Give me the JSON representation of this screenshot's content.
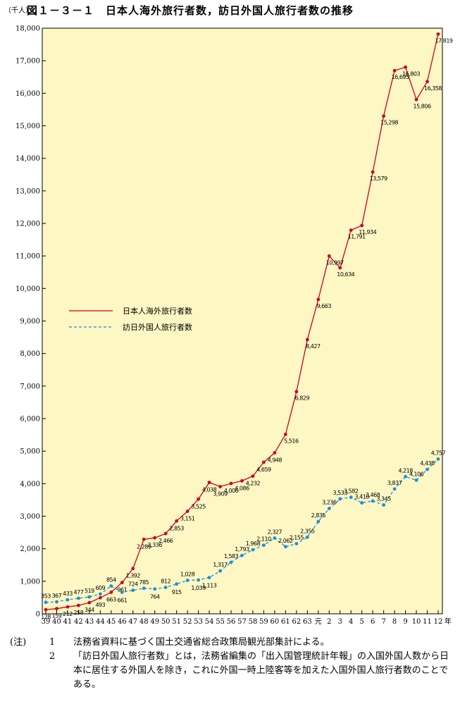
{
  "title": "図１－３－１　日本人海外旅行者数，訪日外国人旅行者数の推移",
  "notes": {
    "mark": "(注)",
    "items": [
      {
        "num": "1",
        "text": "法務省資料に基づく国土交通省総合政策局観光部集計による。"
      },
      {
        "num": "2",
        "text": "「訪日外国人旅行者数」とは，法務省編集の「出入国管理統計年報」の入国外国人数から日本に居住する外国人を除き，これに外国一時上陸客等を加えた入国外国人旅行者数のことである。"
      }
    ]
  },
  "colors": {
    "background": "#fdf7c3",
    "series_outbound": "#cc0022",
    "series_inbound": "#1a8fdd"
  },
  "chart_data": {
    "type": "line",
    "ylabel": "（千人）",
    "x_unit": "年",
    "ylim": [
      0,
      18000
    ],
    "yticks": [
      0,
      1000,
      2000,
      3000,
      4000,
      5000,
      6000,
      7000,
      8000,
      9000,
      10000,
      11000,
      12000,
      13000,
      14000,
      15000,
      16000,
      17000,
      18000
    ],
    "ytick_labels": [
      "0",
      "1,000",
      "2,000",
      "3,000",
      "4,000",
      "5,000",
      "6,000",
      "7,000",
      "8,000",
      "9,000",
      "10,000",
      "11,000",
      "12,000",
      "13,000",
      "14,000",
      "15,000",
      "16,000",
      "17,000",
      "18,000"
    ],
    "x": [
      "39",
      "40",
      "41",
      "42",
      "43",
      "44",
      "45",
      "46",
      "47",
      "48",
      "49",
      "50",
      "51",
      "52",
      "53",
      "54",
      "55",
      "56",
      "57",
      "58",
      "59",
      "60",
      "61",
      "62",
      "63",
      "元",
      "2",
      "3",
      "4",
      "5",
      "6",
      "7",
      "8",
      "9",
      "10",
      "11",
      "12"
    ],
    "grid": false,
    "legend_position": "middle-left",
    "series": [
      {
        "name": "日本人海外旅行者数",
        "style": "solid",
        "values": [
          128,
          159,
          212,
          258,
          344,
          493,
          663,
          961,
          1392,
          2289,
          2336,
          2466,
          2853,
          3151,
          3525,
          4038,
          3909,
          4006,
          4086,
          4232,
          4659,
          4948,
          5516,
          6829,
          8427,
          9663,
          10997,
          10634,
          11791,
          11934,
          13579,
          15298,
          16695,
          16803,
          15806,
          16358,
          17819
        ],
        "labels": [
          "128",
          "159",
          "212",
          "258",
          "344",
          "493",
          "663",
          "961",
          "1,392",
          "2,289",
          "2,336",
          "2,466",
          "2,853",
          "3,151",
          "3,525",
          "4,038",
          "3,909",
          "4,006",
          "4,086",
          "4,232",
          "4,659",
          "4,948",
          "5,516",
          "6,829",
          "8,427",
          "9,663",
          "10,997",
          "10,634",
          "11,791",
          "11,934",
          "13,579",
          "15,298",
          "16,695",
          "16,803",
          "15,806",
          "16,358",
          "17,819"
        ]
      },
      {
        "name": "訪日外国人旅行者数",
        "style": "dashed",
        "values": [
          353,
          367,
          433,
          477,
          519,
          609,
          854,
          661,
          724,
          785,
          764,
          812,
          915,
          1028,
          1039,
          1113,
          1317,
          1583,
          1793,
          1968,
          2110,
          2327,
          2062,
          2155,
          2355,
          2835,
          3236,
          3533,
          3582,
          3410,
          3468,
          3345,
          3837,
          4218,
          4106,
          4438,
          4757
        ],
        "labels": [
          "353",
          "367",
          "433",
          "477",
          "519",
          "609",
          "854",
          "661",
          "724",
          "785",
          "764",
          "812",
          "915",
          "1,028",
          "1,039",
          "1,113",
          "1,317",
          "1,583",
          "1,793",
          "1,968",
          "2,110",
          "2,327",
          "2,062",
          "2,155",
          "2,355",
          "2,835",
          "3,236",
          "3,533",
          "3,582",
          "3,410",
          "3,468",
          "3,345",
          "3,837",
          "4,218",
          "4,106",
          "4,438",
          "4,757"
        ]
      }
    ]
  }
}
